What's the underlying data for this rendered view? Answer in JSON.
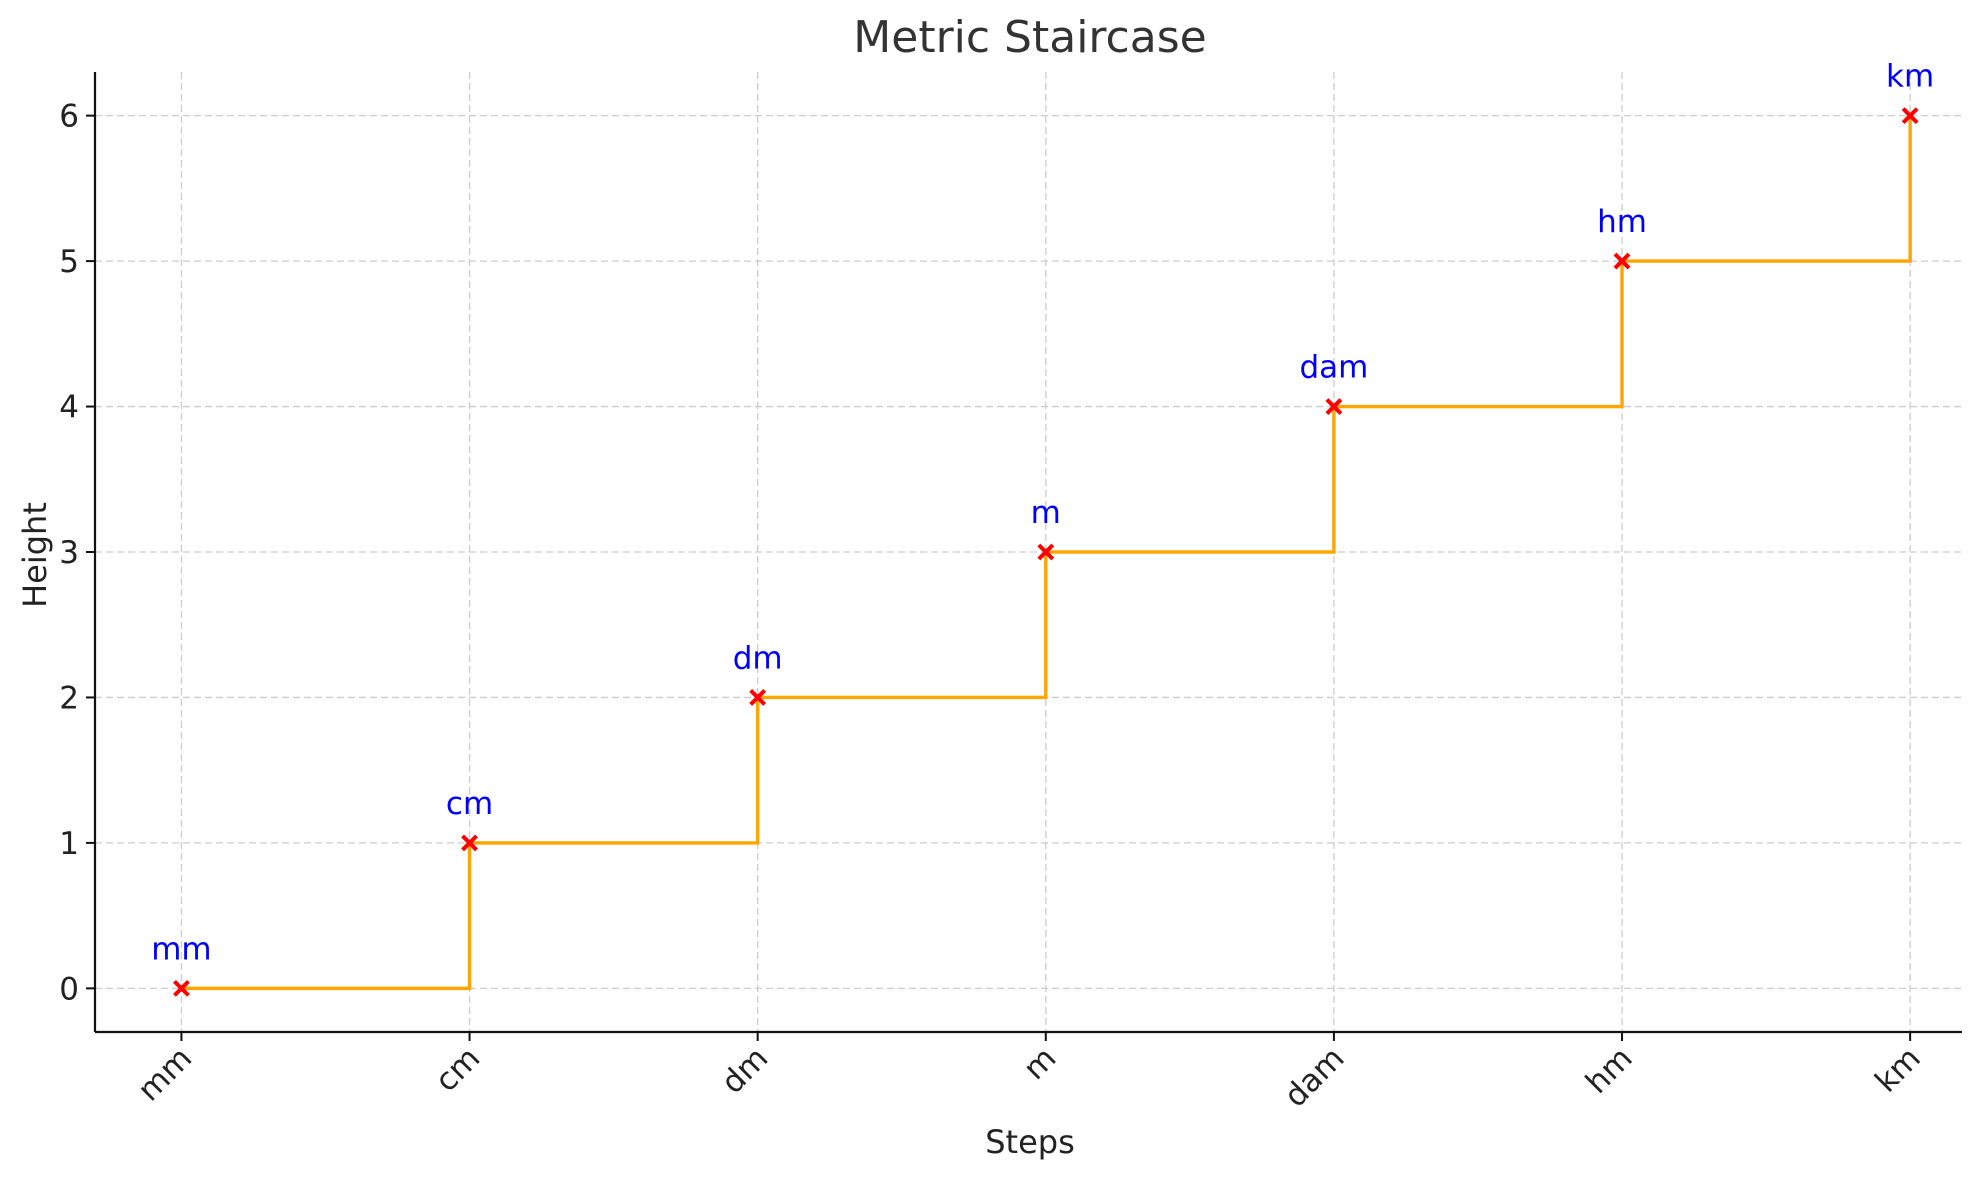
{
  "chart_data": {
    "type": "line",
    "title": "Metric Staircase",
    "xlabel": "Steps",
    "ylabel": "Height",
    "categories": [
      "mm",
      "cm",
      "dm",
      "m",
      "dam",
      "hm",
      "km"
    ],
    "series": [
      {
        "name": "Metric Staircase",
        "values": [
          0,
          1,
          2,
          3,
          4,
          5,
          6
        ]
      }
    ],
    "point_labels": [
      "mm",
      "cm",
      "dm",
      "m",
      "dam",
      "hm",
      "km"
    ],
    "y_ticks": [
      0,
      1,
      2,
      3,
      4,
      5,
      6
    ],
    "ylim": [
      -0.3,
      6.3
    ],
    "xlim": [
      -0.3,
      6.18
    ],
    "step_mode": "post",
    "grid": true,
    "colors": {
      "line": "#FFA500",
      "marker": "#FF0000",
      "point_label": "#0000FF"
    }
  }
}
